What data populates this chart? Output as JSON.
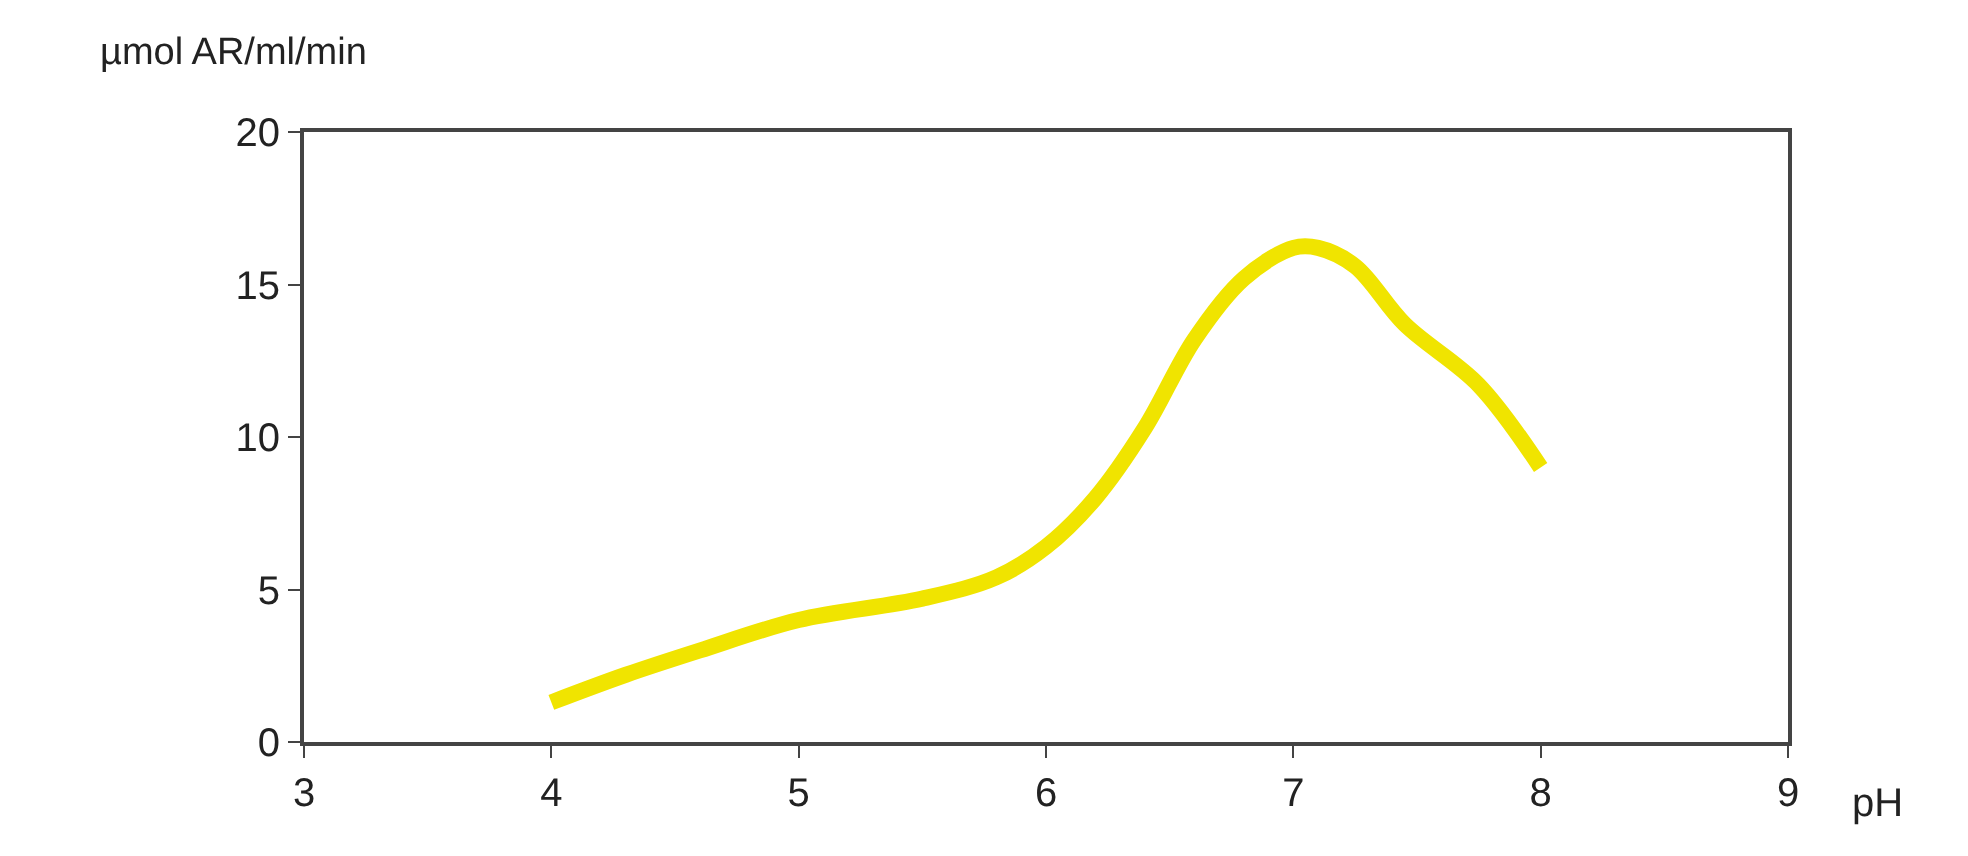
{
  "chart_data": {
    "type": "line",
    "xlabel": "pH",
    "ylabel": "µmol AR/ml/min",
    "x": [
      4,
      4.3,
      4.6,
      5,
      5.5,
      5.8,
      6,
      6.2,
      6.4,
      6.6,
      6.8,
      7,
      7.1,
      7.25,
      7.45,
      7.75,
      8
    ],
    "series": [
      {
        "color": "#f0e400",
        "values": [
          1.3,
          2.2,
          3.0,
          4.0,
          4.7,
          5.4,
          6.4,
          8.0,
          10.3,
          13.2,
          15.2,
          16.2,
          16.2,
          15.6,
          13.7,
          11.7,
          9.0
        ]
      }
    ],
    "xlim": [
      3,
      9
    ],
    "xticks": [
      3,
      4,
      5,
      6,
      7,
      8,
      9
    ],
    "ylim": [
      0,
      20
    ],
    "yticks": [
      0,
      5,
      10,
      15,
      20
    ],
    "marker": "none",
    "line_style": "solid"
  }
}
